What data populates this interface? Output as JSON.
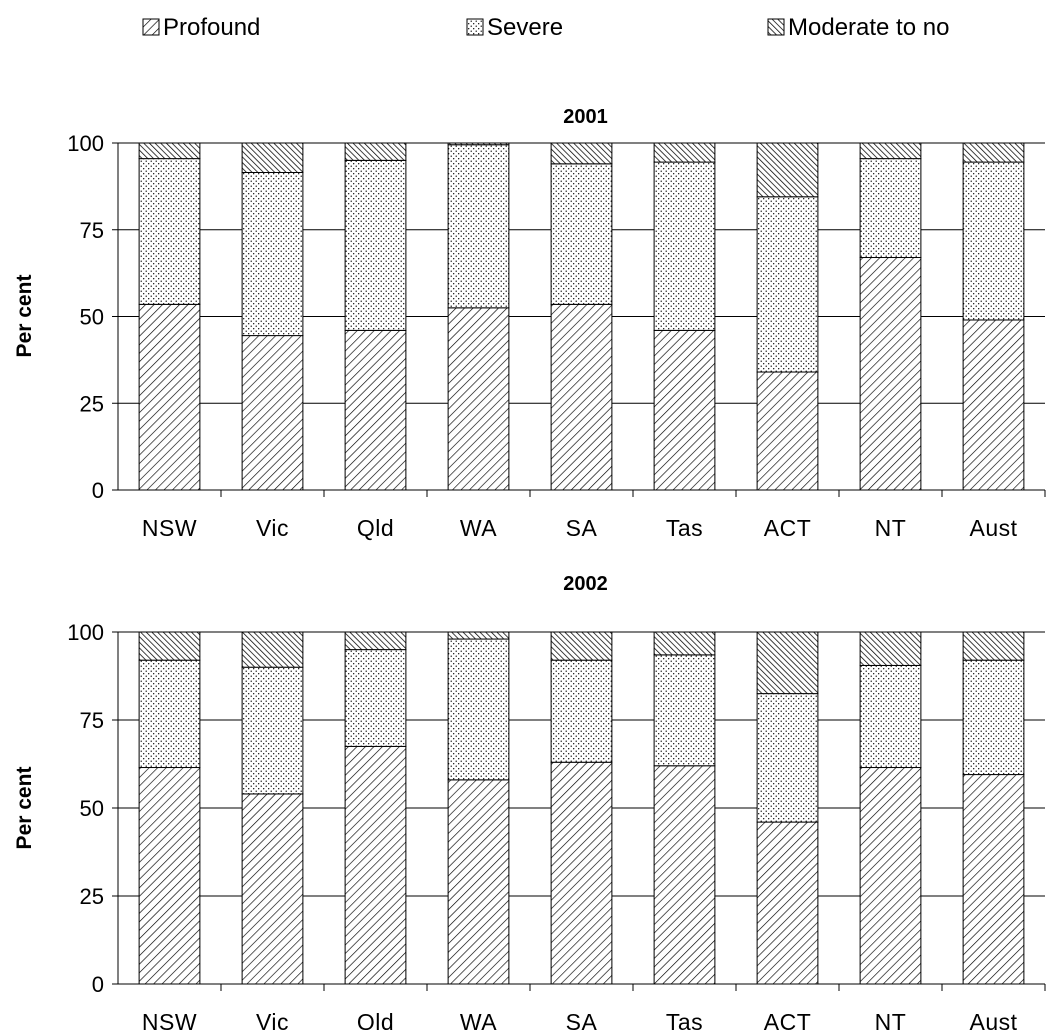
{
  "chart_data": [
    {
      "type": "bar",
      "stacked": true,
      "title": "2001",
      "ylabel": "Per cent",
      "xlabel": "",
      "ylim": [
        0,
        100
      ],
      "yticks": [
        "0",
        "25",
        "50",
        "75",
        "100"
      ],
      "grid": true,
      "categories": [
        "NSW",
        "Vic",
        "Qld",
        "WA",
        "SA",
        "Tas",
        "ACT",
        "NT",
        "Aust"
      ],
      "series": [
        {
          "name": "Profound",
          "values": [
            53.5,
            44.5,
            46,
            52.5,
            53.5,
            46,
            34,
            67,
            49
          ]
        },
        {
          "name": "Severe",
          "values": [
            42,
            47,
            49,
            47,
            40.5,
            48.5,
            50.5,
            28.5,
            45.5
          ]
        },
        {
          "name": "Moderate to no",
          "values": [
            4.5,
            8.5,
            5,
            0.5,
            6,
            5.5,
            15.5,
            4.5,
            5.5
          ]
        }
      ]
    },
    {
      "type": "bar",
      "stacked": true,
      "title": "2002",
      "ylabel": "Per cent",
      "xlabel": "",
      "ylim": [
        0,
        100
      ],
      "yticks": [
        "0",
        "25",
        "50",
        "75",
        "100"
      ],
      "grid": true,
      "categories": [
        "NSW",
        "Vic",
        "Qld",
        "WA",
        "SA",
        "Tas",
        "ACT",
        "NT",
        "Aust"
      ],
      "series": [
        {
          "name": "Profound",
          "values": [
            61.5,
            54,
            67.5,
            58,
            63,
            62,
            46,
            61.5,
            59.5
          ]
        },
        {
          "name": "Severe",
          "values": [
            30.5,
            36,
            27.5,
            40,
            29,
            31.5,
            36.5,
            29,
            32.5
          ]
        },
        {
          "name": "Moderate to no",
          "values": [
            8,
            10,
            5,
            2,
            8,
            6.5,
            17.5,
            9.5,
            8
          ]
        }
      ]
    }
  ],
  "legend": {
    "placement": "top",
    "items": [
      {
        "label": "Profound",
        "pattern": "diagonal-lines"
      },
      {
        "label": "Severe",
        "pattern": "dots"
      },
      {
        "label": "Moderate to no",
        "pattern": "dense-diagonal"
      }
    ]
  },
  "colors": {
    "bar_fill": "#ffffff",
    "bar_stroke": "#000000",
    "pattern_ink": "#000000"
  }
}
